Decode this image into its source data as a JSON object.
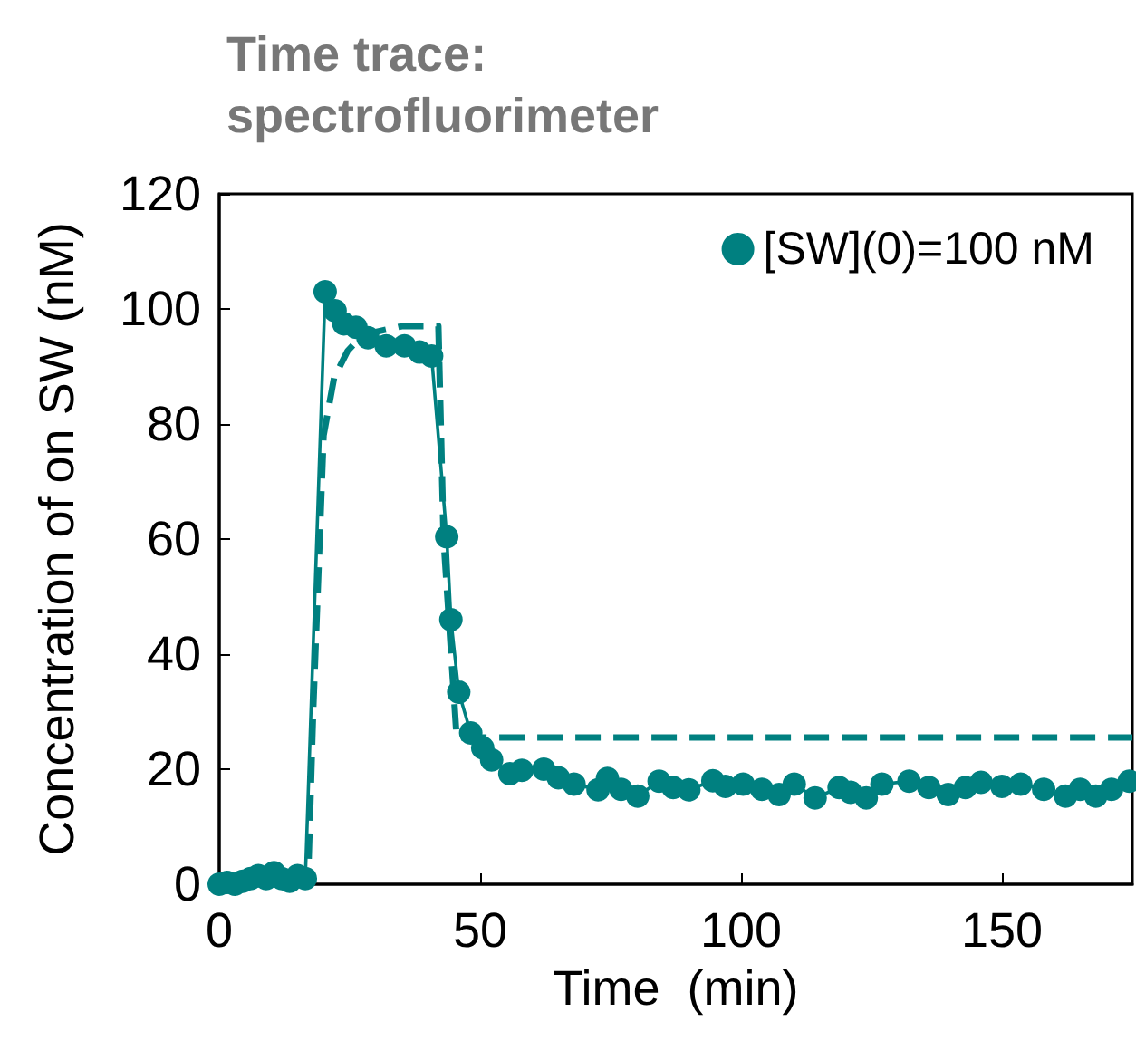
{
  "chart_data": {
    "type": "line",
    "title": "Time trace:\nspectrofluorimeter",
    "xlabel": "Time  (min)",
    "ylabel": "Concentration of on SW (nM)",
    "xlim": [
      0,
      175
    ],
    "xticks": [
      0,
      50,
      100,
      150
    ],
    "ylim": [
      0,
      120
    ],
    "yticks": [
      0,
      20,
      40,
      60,
      80,
      100,
      120
    ],
    "grid": false,
    "legend": "top right",
    "series": [
      {
        "name": "[SW](0)=100 nM",
        "color": "#008080",
        "marker": "circle",
        "line_style": "solid",
        "x": [
          0,
          1.5,
          3,
          4.5,
          6,
          7.5,
          9,
          10.5,
          12,
          13.5,
          15,
          16.5,
          20.3,
          22.2,
          23.9,
          26.2,
          28.5,
          32,
          35.5,
          38.4,
          40.7,
          43.6,
          44.4,
          45.9,
          48.2,
          50.5,
          52.2,
          55.7,
          58,
          62.2,
          65,
          68,
          72.6,
          74.4,
          77,
          80.2,
          84.3,
          87,
          90,
          94.6,
          97,
          100.4,
          104,
          107.3,
          110.2,
          114.2,
          118.8,
          121,
          124,
          127,
          132.2,
          136,
          139.7,
          143,
          146,
          150,
          153.6,
          158,
          162.2,
          165,
          168,
          171,
          174.4
        ],
        "values": [
          0,
          0.3,
          0,
          0.5,
          1,
          1.5,
          1,
          2,
          1,
          0.5,
          1.5,
          1,
          103,
          99.7,
          97.4,
          96.8,
          95,
          93.6,
          93.6,
          92.5,
          91.8,
          60.4,
          46,
          33.4,
          26.3,
          23.7,
          21.6,
          19.2,
          19.8,
          20,
          18.5,
          17.4,
          16.4,
          18.4,
          16.5,
          15.3,
          17.9,
          16.8,
          16.4,
          18,
          17,
          17.4,
          16.5,
          15.6,
          17.4,
          15,
          16.8,
          16,
          15,
          17.4,
          17.9,
          16.8,
          15.6,
          16.8,
          17.7,
          17,
          17.4,
          16.5,
          15.3,
          16.5,
          15.3,
          16.5,
          17.9
        ]
      },
      {
        "color": "#008080",
        "marker": "none",
        "line_style": "dashed",
        "x": [
          0,
          17,
          18,
          20,
          22,
          24.6,
          27.5,
          35,
          42,
          43,
          45.5,
          175
        ],
        "values": [
          0,
          0,
          30,
          78,
          88,
          92.7,
          95.5,
          97,
          97,
          60,
          25.5,
          25.5
        ]
      }
    ]
  }
}
